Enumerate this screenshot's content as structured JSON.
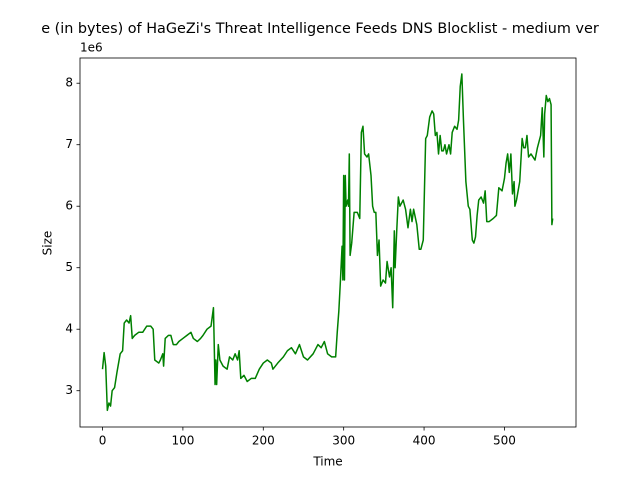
{
  "chart_data": {
    "type": "line",
    "title": "e (in bytes) of HaGeZi's Threat Intelligence Feeds DNS Blocklist - medium ver",
    "x_label": "Time",
    "y_label": "Size",
    "y_offset_label": "1e6",
    "xlim": [
      -28,
      589
    ],
    "ylim": [
      2410000,
      8410000
    ],
    "xticks": [
      0,
      100,
      200,
      300,
      400,
      500
    ],
    "yticks": [
      {
        "value": 3000000,
        "label": "3"
      },
      {
        "value": 4000000,
        "label": "4"
      },
      {
        "value": 5000000,
        "label": "5"
      },
      {
        "value": 6000000,
        "label": "6"
      },
      {
        "value": 7000000,
        "label": "7"
      },
      {
        "value": 8000000,
        "label": "8"
      }
    ],
    "grid": false,
    "series": [
      {
        "color": "#008000",
        "x": [
          0,
          2,
          4,
          6,
          8,
          10,
          12,
          15,
          18,
          22,
          25,
          27,
          30,
          33,
          35,
          37,
          40,
          45,
          50,
          55,
          60,
          63,
          65,
          70,
          72,
          75,
          76,
          78,
          82,
          85,
          88,
          92,
          95,
          100,
          105,
          110,
          113,
          118,
          122,
          125,
          130,
          135,
          138,
          140,
          141,
          142,
          144,
          146,
          150,
          155,
          158,
          162,
          165,
          168,
          170,
          172,
          176,
          180,
          185,
          190,
          195,
          200,
          205,
          210,
          212,
          218,
          225,
          230,
          235,
          240,
          245,
          250,
          255,
          262,
          268,
          272,
          276,
          280,
          285,
          290,
          292,
          294,
          296,
          298,
          299,
          300,
          301,
          302,
          303,
          305,
          306,
          307,
          308,
          310,
          313,
          317,
          320,
          322,
          324,
          326,
          329,
          331,
          334,
          336,
          338,
          340,
          342,
          344,
          346,
          349,
          352,
          354,
          357,
          359,
          361,
          363,
          364,
          366,
          368,
          370,
          374,
          377,
          380,
          383,
          385,
          387,
          391,
          394,
          396,
          399,
          402,
          404,
          407,
          410,
          412,
          414,
          416,
          418,
          420,
          422,
          424,
          426,
          428,
          431,
          433,
          435,
          438,
          441,
          443,
          445,
          447,
          449,
          452,
          455,
          457,
          460,
          462,
          464,
          466,
          468,
          471,
          474,
          476,
          478,
          481,
          486,
          490,
          493,
          497,
          500,
          502,
          504,
          506,
          508,
          510,
          512,
          513,
          515,
          519,
          522,
          524,
          526,
          528,
          530,
          533,
          538,
          541,
          545,
          547,
          549,
          550,
          552,
          554,
          556,
          558,
          559,
          560
        ],
        "values": [
          3350000,
          3620000,
          3400000,
          2680000,
          2800000,
          2750000,
          3000000,
          3050000,
          3300000,
          3600000,
          3650000,
          4100000,
          4150000,
          4100000,
          4220000,
          3850000,
          3900000,
          3950000,
          3950000,
          4050000,
          4050000,
          4000000,
          3500000,
          3450000,
          3500000,
          3600000,
          3400000,
          3850000,
          3900000,
          3900000,
          3750000,
          3750000,
          3800000,
          3850000,
          3900000,
          3950000,
          3850000,
          3800000,
          3850000,
          3900000,
          4000000,
          4050000,
          4350000,
          3100000,
          3500000,
          3100000,
          3750000,
          3500000,
          3400000,
          3350000,
          3550000,
          3500000,
          3600000,
          3500000,
          3650000,
          3200000,
          3250000,
          3150000,
          3200000,
          3200000,
          3350000,
          3450000,
          3500000,
          3450000,
          3350000,
          3450000,
          3550000,
          3650000,
          3700000,
          3600000,
          3750000,
          3550000,
          3500000,
          3600000,
          3750000,
          3700000,
          3800000,
          3600000,
          3550000,
          3550000,
          3950000,
          4300000,
          4800000,
          5350000,
          4800000,
          6500000,
          4800000,
          6500000,
          6000000,
          6100000,
          6000000,
          6850000,
          5200000,
          5400000,
          5900000,
          5900000,
          5800000,
          7200000,
          7300000,
          6850000,
          6800000,
          6850000,
          6500000,
          6000000,
          5900000,
          5900000,
          5200000,
          5450000,
          4700000,
          4800000,
          4750000,
          5100000,
          4850000,
          5000000,
          4350000,
          5600000,
          5000000,
          5600000,
          6150000,
          6000000,
          6100000,
          5950000,
          5650000,
          5950000,
          5750000,
          5950000,
          5700000,
          5300000,
          5300000,
          5450000,
          7100000,
          7150000,
          7450000,
          7550000,
          7500000,
          7150000,
          7200000,
          6850000,
          7150000,
          6900000,
          6900000,
          7000000,
          6850000,
          7000000,
          6850000,
          7200000,
          7300000,
          7250000,
          7400000,
          7950000,
          8150000,
          7400000,
          6400000,
          6000000,
          5950000,
          5450000,
          5400000,
          5500000,
          5850000,
          6100000,
          6150000,
          6050000,
          6250000,
          5750000,
          5750000,
          5800000,
          5850000,
          6300000,
          6250000,
          6450000,
          6700000,
          6850000,
          6550000,
          6850000,
          6200000,
          6400000,
          6000000,
          6100000,
          6400000,
          7100000,
          6950000,
          6950000,
          7150000,
          6800000,
          6850000,
          6750000,
          6950000,
          7150000,
          7600000,
          6800000,
          7500000,
          7800000,
          7700000,
          7750000,
          7650000,
          5700000,
          5800000
        ]
      }
    ]
  }
}
